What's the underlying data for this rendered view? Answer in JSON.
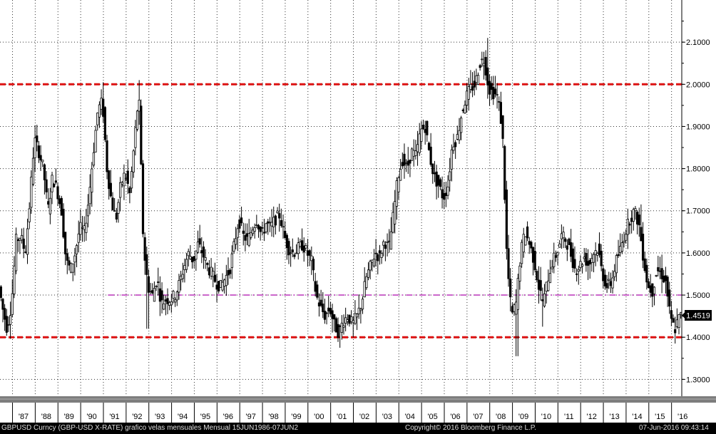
{
  "chart_data": {
    "type": "candlestick",
    "security": "GBPUSD Curncy",
    "ylim": [
      1.26,
      2.2
    ],
    "yticks": [
      "1.3000",
      "1.4000",
      "1.5000",
      "1.6000",
      "1.7000",
      "1.8000",
      "1.9000",
      "2.0000",
      "2.1000"
    ],
    "xticks": [
      "'87",
      "'88",
      "'89",
      "'90",
      "'91",
      "'92",
      "'93",
      "'94",
      "'95",
      "'96",
      "'97",
      "'98",
      "'99",
      "'00",
      "'01",
      "'02",
      "'03",
      "'04",
      "'05",
      "'06",
      "'07",
      "'08",
      "'09",
      "'10",
      "'11",
      "'12",
      "'13",
      "'14",
      "'15",
      "'16"
    ],
    "x_start": 1986.45,
    "x_end": 2016.45,
    "last_price": "1.4519",
    "grid": true,
    "reference_lines": [
      {
        "value": 2.0,
        "color": "#dd1111",
        "style": "dashed"
      },
      {
        "value": 1.5,
        "color": "#cc66cc",
        "style": "dashed"
      },
      {
        "value": 1.4,
        "color": "#dd1111",
        "style": "dashed"
      }
    ],
    "price_path": [
      [
        1986.45,
        1.52
      ],
      [
        1986.6,
        1.47
      ],
      [
        1986.8,
        1.42
      ],
      [
        1987.0,
        1.48
      ],
      [
        1987.2,
        1.63
      ],
      [
        1987.4,
        1.64
      ],
      [
        1987.6,
        1.6
      ],
      [
        1987.8,
        1.72
      ],
      [
        1988.0,
        1.87
      ],
      [
        1988.2,
        1.84
      ],
      [
        1988.4,
        1.8
      ],
      [
        1988.6,
        1.7
      ],
      [
        1988.8,
        1.78
      ],
      [
        1989.0,
        1.75
      ],
      [
        1989.2,
        1.7
      ],
      [
        1989.4,
        1.58
      ],
      [
        1989.6,
        1.56
      ],
      [
        1989.8,
        1.6
      ],
      [
        1990.0,
        1.66
      ],
      [
        1990.2,
        1.65
      ],
      [
        1990.4,
        1.73
      ],
      [
        1990.6,
        1.84
      ],
      [
        1990.8,
        1.94
      ],
      [
        1991.0,
        1.96
      ],
      [
        1991.2,
        1.8
      ],
      [
        1991.4,
        1.72
      ],
      [
        1991.6,
        1.68
      ],
      [
        1991.8,
        1.76
      ],
      [
        1992.0,
        1.79
      ],
      [
        1992.2,
        1.74
      ],
      [
        1992.4,
        1.86
      ],
      [
        1992.6,
        1.98
      ],
      [
        1992.8,
        1.62
      ],
      [
        1993.0,
        1.52
      ],
      [
        1993.2,
        1.5
      ],
      [
        1993.4,
        1.54
      ],
      [
        1993.6,
        1.48
      ],
      [
        1993.8,
        1.49
      ],
      [
        1994.0,
        1.49
      ],
      [
        1994.2,
        1.5
      ],
      [
        1994.4,
        1.53
      ],
      [
        1994.6,
        1.57
      ],
      [
        1994.8,
        1.6
      ],
      [
        1995.0,
        1.58
      ],
      [
        1995.2,
        1.62
      ],
      [
        1995.4,
        1.6
      ],
      [
        1995.6,
        1.57
      ],
      [
        1995.8,
        1.55
      ],
      [
        1996.0,
        1.53
      ],
      [
        1996.2,
        1.52
      ],
      [
        1996.4,
        1.54
      ],
      [
        1996.6,
        1.56
      ],
      [
        1996.8,
        1.62
      ],
      [
        1997.0,
        1.68
      ],
      [
        1997.2,
        1.64
      ],
      [
        1997.4,
        1.63
      ],
      [
        1997.6,
        1.66
      ],
      [
        1997.8,
        1.68
      ],
      [
        1998.0,
        1.64
      ],
      [
        1998.2,
        1.67
      ],
      [
        1998.4,
        1.66
      ],
      [
        1998.6,
        1.68
      ],
      [
        1998.8,
        1.69
      ],
      [
        1999.0,
        1.64
      ],
      [
        1999.2,
        1.61
      ],
      [
        1999.4,
        1.6
      ],
      [
        1999.6,
        1.61
      ],
      [
        1999.8,
        1.62
      ],
      [
        2000.0,
        1.6
      ],
      [
        2000.2,
        1.58
      ],
      [
        2000.4,
        1.5
      ],
      [
        2000.6,
        1.47
      ],
      [
        2000.8,
        1.45
      ],
      [
        2001.0,
        1.47
      ],
      [
        2001.2,
        1.43
      ],
      [
        2001.4,
        1.41
      ],
      [
        2001.6,
        1.44
      ],
      [
        2001.8,
        1.45
      ],
      [
        2002.0,
        1.43
      ],
      [
        2002.2,
        1.45
      ],
      [
        2002.4,
        1.48
      ],
      [
        2002.6,
        1.54
      ],
      [
        2002.8,
        1.57
      ],
      [
        2003.0,
        1.6
      ],
      [
        2003.2,
        1.59
      ],
      [
        2003.4,
        1.63
      ],
      [
        2003.6,
        1.61
      ],
      [
        2003.8,
        1.69
      ],
      [
        2004.0,
        1.78
      ],
      [
        2004.2,
        1.82
      ],
      [
        2004.4,
        1.8
      ],
      [
        2004.6,
        1.84
      ],
      [
        2004.8,
        1.83
      ],
      [
        2005.0,
        1.89
      ],
      [
        2005.2,
        1.9
      ],
      [
        2005.4,
        1.83
      ],
      [
        2005.6,
        1.78
      ],
      [
        2005.8,
        1.76
      ],
      [
        2006.0,
        1.73
      ],
      [
        2006.2,
        1.76
      ],
      [
        2006.4,
        1.86
      ],
      [
        2006.6,
        1.87
      ],
      [
        2006.8,
        1.93
      ],
      [
        2007.0,
        1.97
      ],
      [
        2007.2,
        1.99
      ],
      [
        2007.4,
        2.0
      ],
      [
        2007.6,
        2.05
      ],
      [
        2007.8,
        2.06
      ],
      [
        2008.0,
        1.99
      ],
      [
        2008.2,
        1.98
      ],
      [
        2008.4,
        1.97
      ],
      [
        2008.6,
        1.89
      ],
      [
        2008.8,
        1.58
      ],
      [
        2009.0,
        1.45
      ],
      [
        2009.2,
        1.48
      ],
      [
        2009.4,
        1.6
      ],
      [
        2009.6,
        1.65
      ],
      [
        2009.8,
        1.62
      ],
      [
        2010.0,
        1.58
      ],
      [
        2010.2,
        1.52
      ],
      [
        2010.4,
        1.48
      ],
      [
        2010.6,
        1.54
      ],
      [
        2010.8,
        1.58
      ],
      [
        2011.0,
        1.6
      ],
      [
        2011.2,
        1.64
      ],
      [
        2011.4,
        1.63
      ],
      [
        2011.6,
        1.6
      ],
      [
        2011.8,
        1.56
      ],
      [
        2012.0,
        1.57
      ],
      [
        2012.2,
        1.59
      ],
      [
        2012.4,
        1.57
      ],
      [
        2012.6,
        1.6
      ],
      [
        2012.8,
        1.61
      ],
      [
        2013.0,
        1.55
      ],
      [
        2013.2,
        1.52
      ],
      [
        2013.4,
        1.53
      ],
      [
        2013.6,
        1.58
      ],
      [
        2013.8,
        1.61
      ],
      [
        2014.0,
        1.65
      ],
      [
        2014.2,
        1.68
      ],
      [
        2014.4,
        1.7
      ],
      [
        2014.6,
        1.67
      ],
      [
        2014.8,
        1.59
      ],
      [
        2015.0,
        1.52
      ],
      [
        2015.2,
        1.51
      ],
      [
        2015.4,
        1.56
      ],
      [
        2015.6,
        1.55
      ],
      [
        2015.8,
        1.53
      ],
      [
        2016.0,
        1.44
      ],
      [
        2016.2,
        1.42
      ],
      [
        2016.4,
        1.45
      ]
    ],
    "wick_spikes": [
      [
        1986.85,
        1.405
      ],
      [
        1990.95,
        2.005
      ],
      [
        1992.55,
        2.01
      ],
      [
        1992.9,
        1.42
      ],
      [
        2001.35,
        1.375
      ],
      [
        2007.85,
        2.11
      ],
      [
        2009.15,
        1.355
      ],
      [
        2010.3,
        1.425
      ],
      [
        2014.6,
        1.715
      ],
      [
        2016.1,
        1.385
      ]
    ]
  },
  "footer": {
    "left": "GBPUSD Curncy (GBP-USD X-RATE) grafico velas mensuales  Mensual 15JUN1986-07JUN2",
    "center": "Copyright© 2016 Bloomberg Finance L.P.",
    "right": "07-Jun-2016 09:43:14"
  }
}
